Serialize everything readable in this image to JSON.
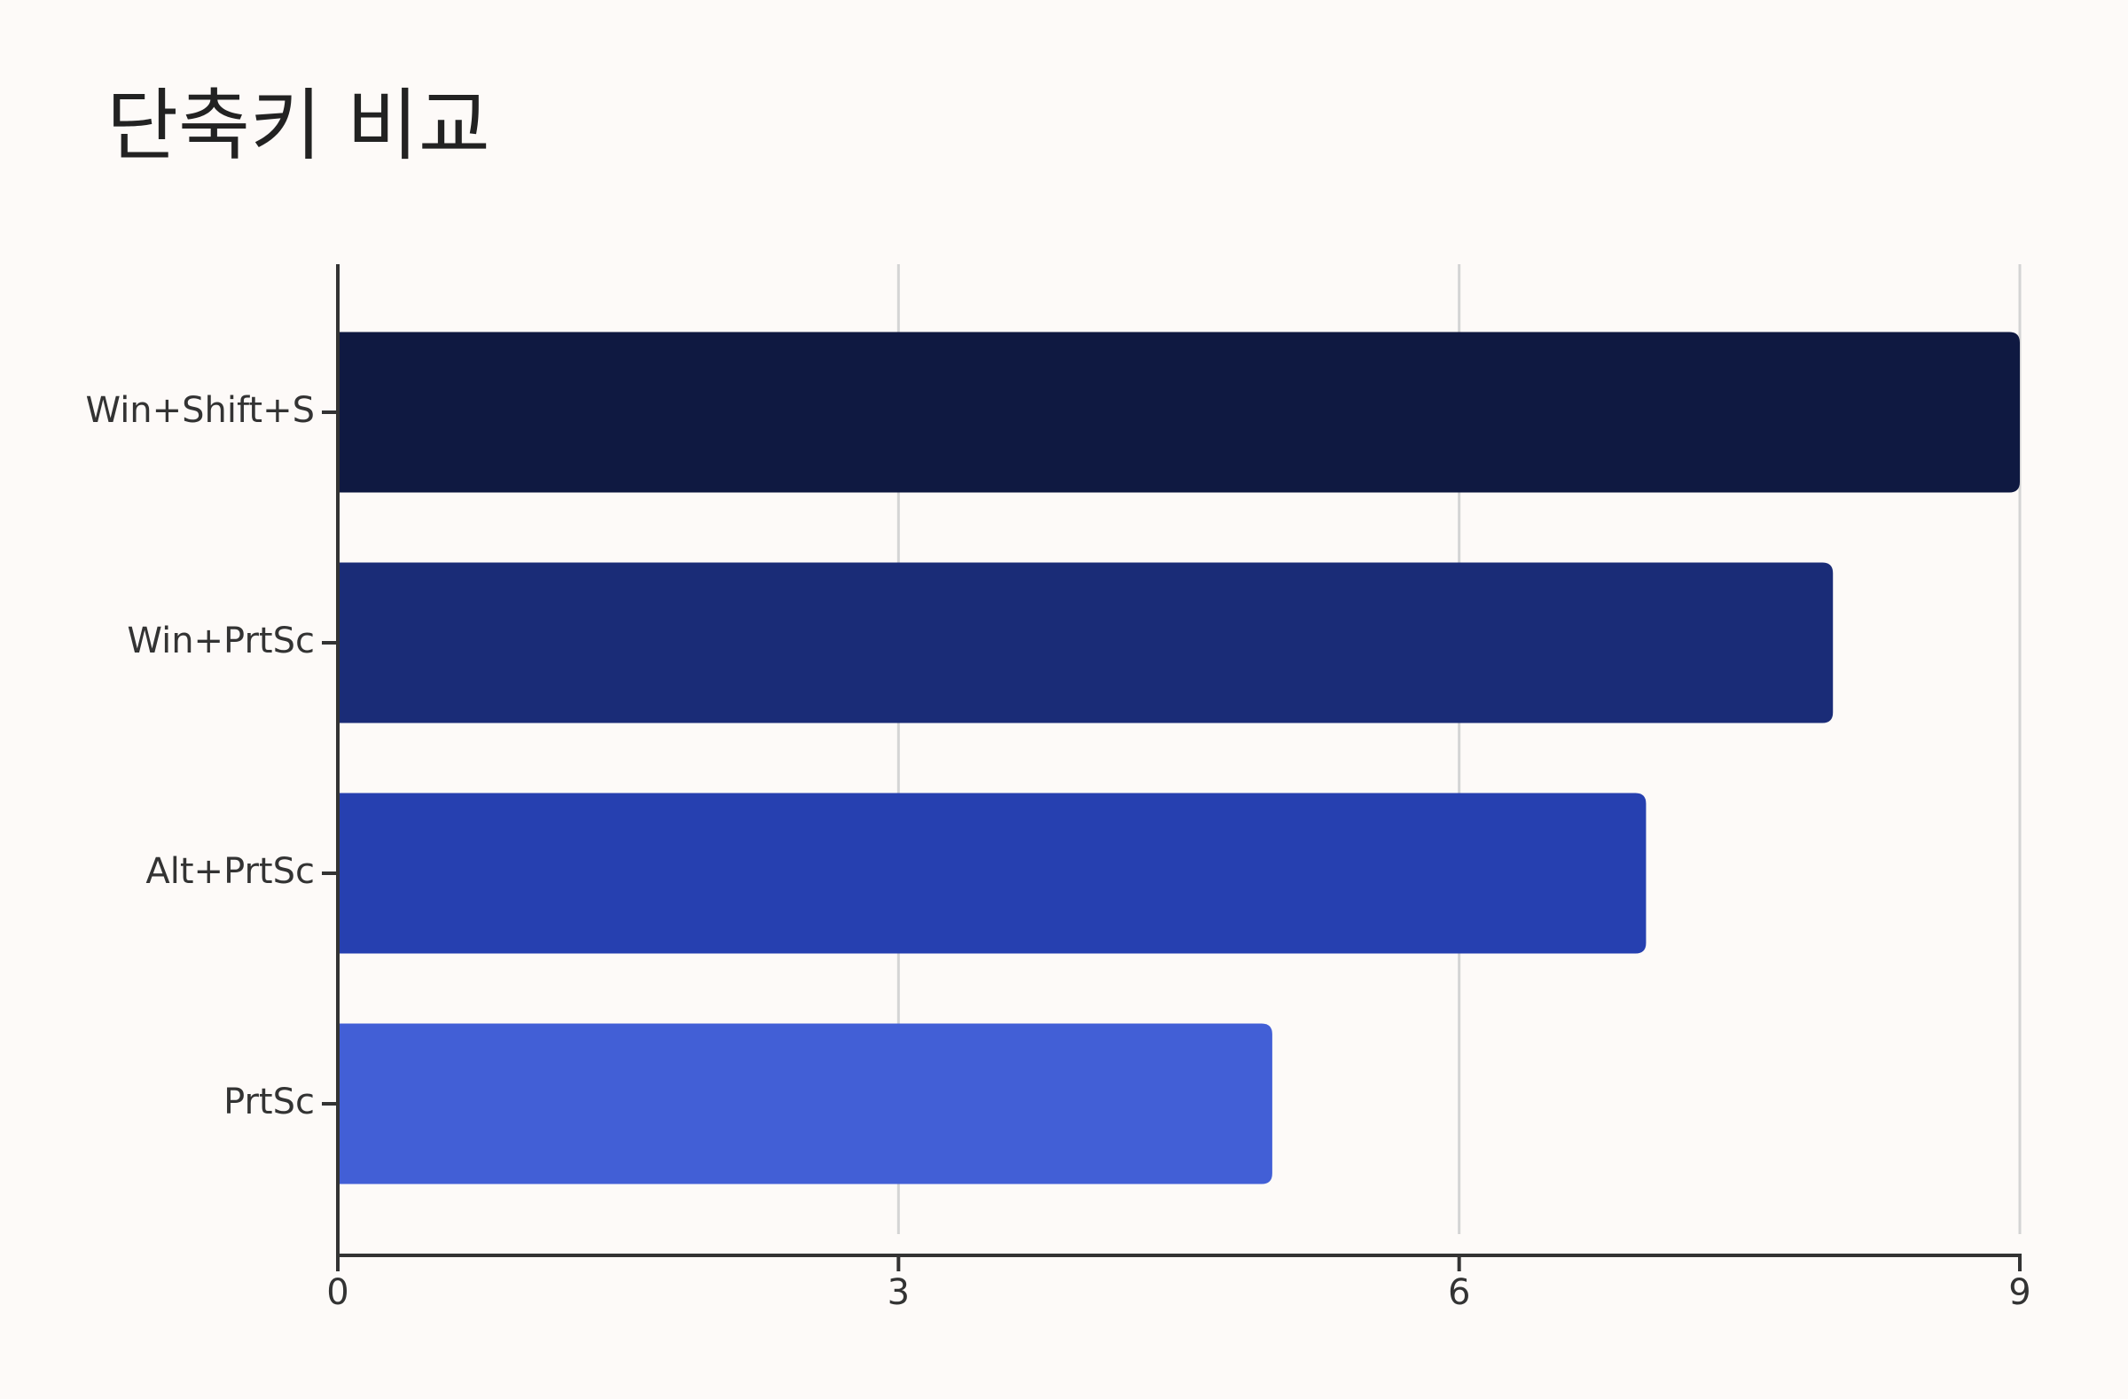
{
  "chart_data": {
    "type": "bar",
    "orientation": "horizontal",
    "title": "단축키 비교",
    "categories": [
      "Win+Shift+S",
      "Win+PrtSc",
      "Alt+PrtSc",
      "PrtSc"
    ],
    "values": [
      9,
      8,
      7,
      5
    ],
    "colors": [
      "#0f1941",
      "#1a2c77",
      "#2640b0",
      "#425fd6"
    ],
    "xlim": [
      0,
      9
    ],
    "xticks": [
      0,
      3,
      6,
      9
    ],
    "grid": true
  }
}
